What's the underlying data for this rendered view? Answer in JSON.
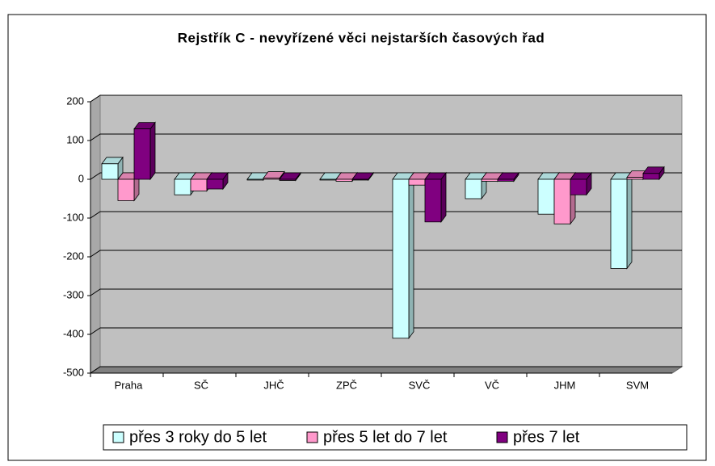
{
  "chart_data": {
    "type": "bar",
    "title": "Rejstřík C - nevyřízené věci nejstarších časových řad",
    "categories": [
      "Praha",
      "SČ",
      "JHČ",
      "ZPČ",
      "SVČ",
      "VČ",
      "JHM",
      "SVM"
    ],
    "series": [
      {
        "name": "přes 3 roky do 5 let",
        "color": "#ccffff",
        "values": [
          40,
          -40,
          -2,
          -2,
          -410,
          -50,
          -90,
          -230
        ]
      },
      {
        "name": "přes 5 let do 7 let",
        "color": "#ff99cc",
        "values": [
          -55,
          -30,
          3,
          -5,
          -15,
          -5,
          -115,
          5
        ]
      },
      {
        "name": "přes 7 let",
        "color": "#800080",
        "values": [
          130,
          -25,
          -3,
          -2,
          -110,
          -5,
          -40,
          15
        ]
      }
    ],
    "ylim": [
      -500,
      200
    ],
    "yticks": [
      -500,
      -400,
      -300,
      -200,
      -100,
      0,
      100,
      200
    ],
    "grid": true
  }
}
